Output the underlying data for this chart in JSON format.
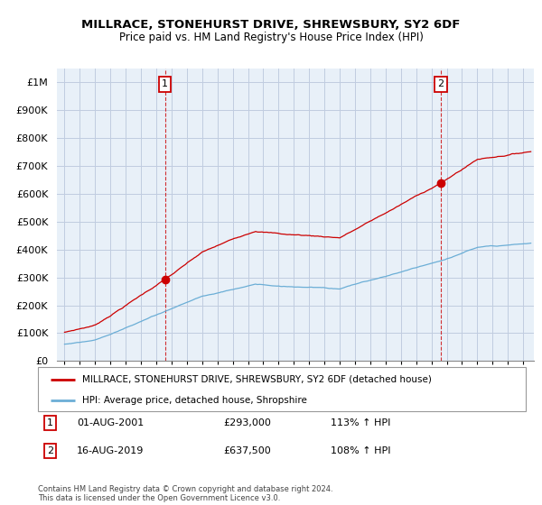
{
  "title": "MILLRACE, STONEHURST DRIVE, SHREWSBURY, SY2 6DF",
  "subtitle": "Price paid vs. HM Land Registry's House Price Index (HPI)",
  "legend_line1": "MILLRACE, STONEHURST DRIVE, SHREWSBURY, SY2 6DF (detached house)",
  "legend_line2": "HPI: Average price, detached house, Shropshire",
  "sale1_date": "01-AUG-2001",
  "sale1_price": "£293,000",
  "sale1_hpi": "113% ↑ HPI",
  "sale1_year": 2001.58,
  "sale1_value": 293000,
  "sale2_date": "16-AUG-2019",
  "sale2_price": "£637,500",
  "sale2_hpi": "108% ↑ HPI",
  "sale2_year": 2019.62,
  "sale2_value": 637500,
  "hpi_color": "#6baed6",
  "sale_color": "#cc0000",
  "ylim_min": 0,
  "ylim_max": 1050000,
  "yticks": [
    0,
    100000,
    200000,
    300000,
    400000,
    500000,
    600000,
    700000,
    800000,
    900000,
    1000000
  ],
  "ytick_labels": [
    "£0",
    "£100K",
    "£200K",
    "£300K",
    "£400K",
    "£500K",
    "£600K",
    "£700K",
    "£800K",
    "£900K",
    "£1M"
  ],
  "xlim_min": 1994.5,
  "xlim_max": 2025.7,
  "xticks": [
    1995,
    1996,
    1997,
    1998,
    1999,
    2000,
    2001,
    2002,
    2003,
    2004,
    2005,
    2006,
    2007,
    2008,
    2009,
    2010,
    2011,
    2012,
    2013,
    2014,
    2015,
    2016,
    2017,
    2018,
    2019,
    2020,
    2021,
    2022,
    2023,
    2024,
    2025
  ],
  "bg_fill_color": "#e8f0f8",
  "grid_color": "#c0cce0",
  "footnote": "Contains HM Land Registry data © Crown copyright and database right 2024.\nThis data is licensed under the Open Government Licence v3.0."
}
